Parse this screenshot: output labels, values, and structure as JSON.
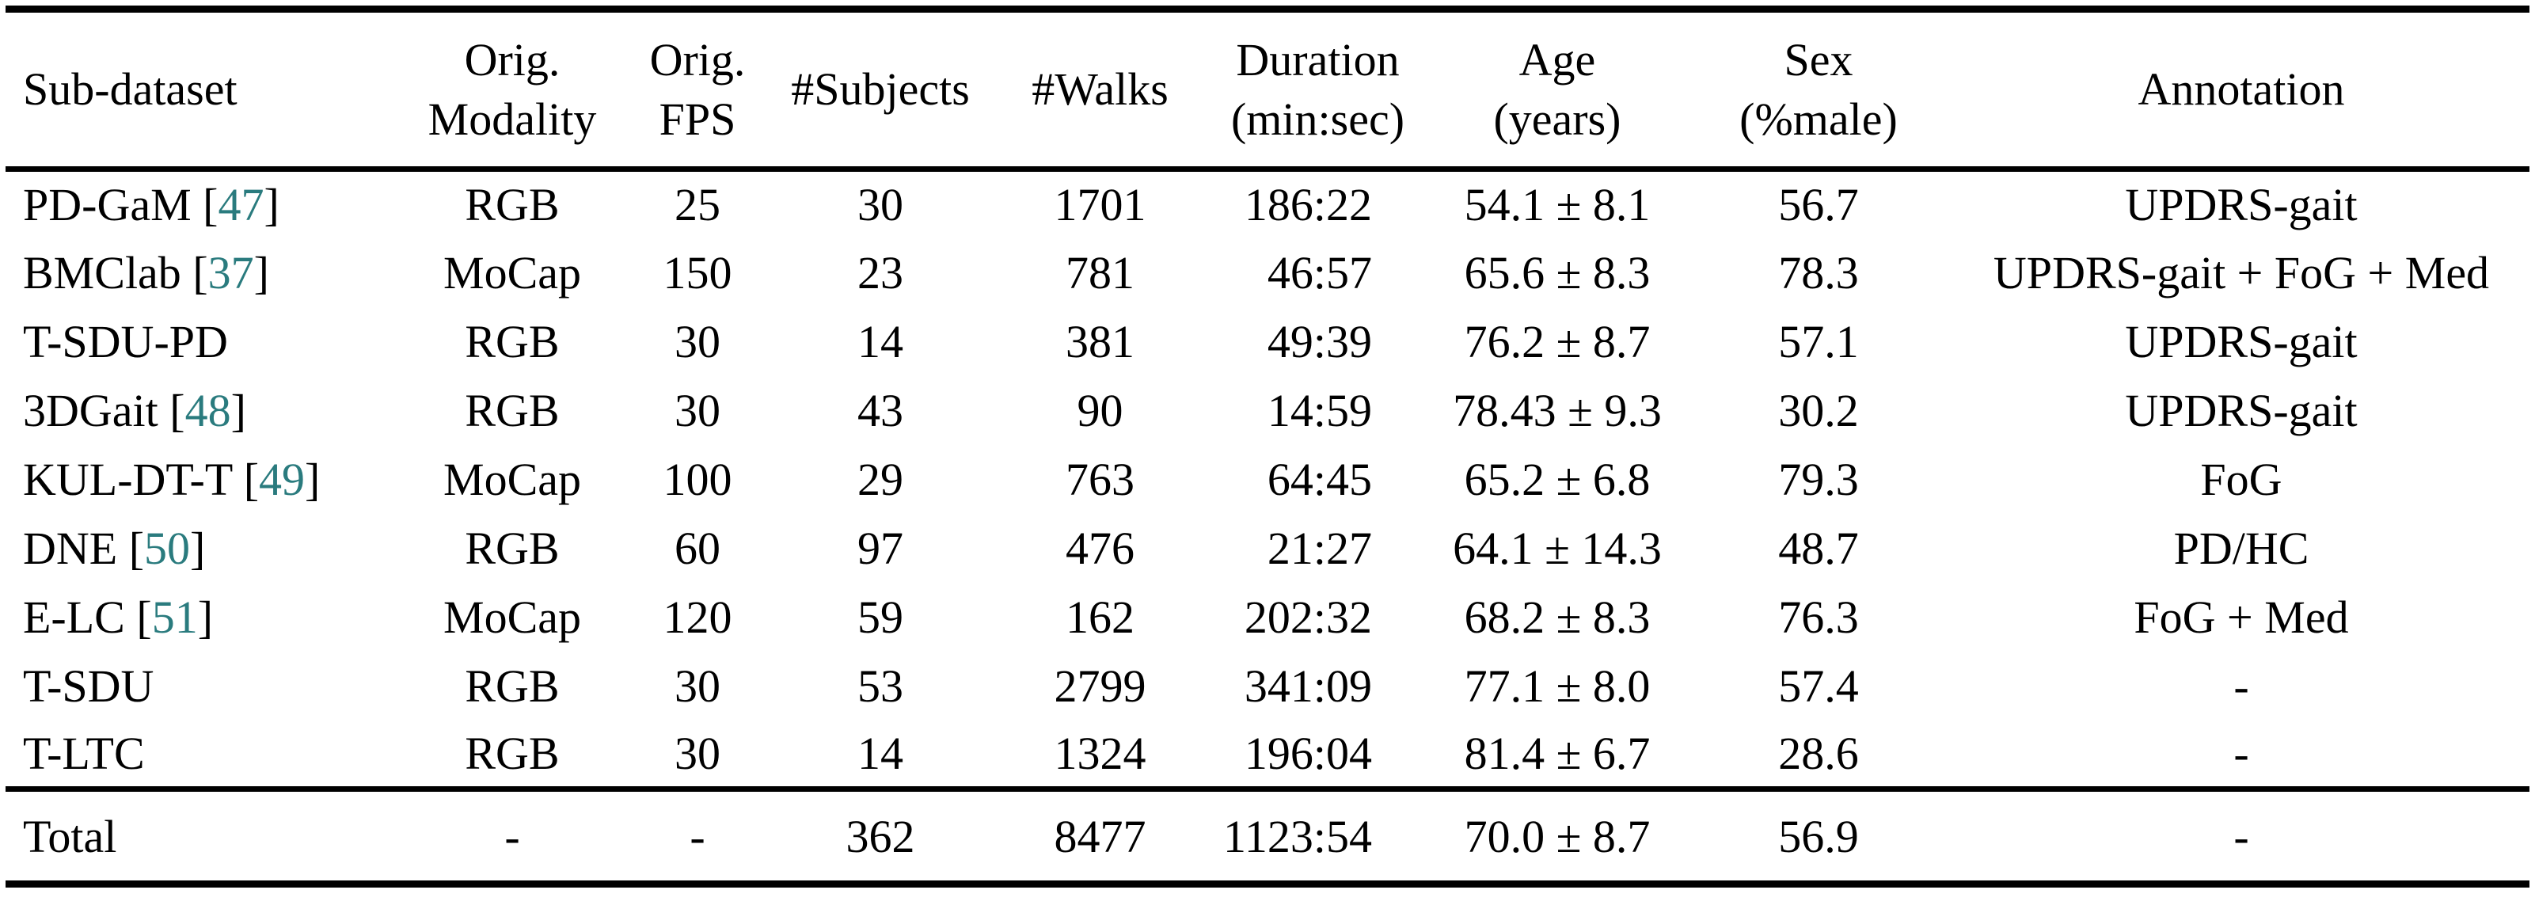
{
  "colors": {
    "text": "#000000",
    "background": "#ffffff",
    "rule": "#000000",
    "citation_link": "#2a7b7e"
  },
  "table": {
    "columns": [
      {
        "id": "subdataset",
        "label_lines": [
          "Sub-dataset"
        ]
      },
      {
        "id": "orig_modality",
        "label_lines": [
          "Orig.",
          "Modality"
        ]
      },
      {
        "id": "orig_fps",
        "label_lines": [
          "Orig.",
          "FPS"
        ]
      },
      {
        "id": "subjects",
        "label_lines": [
          "#Subjects"
        ]
      },
      {
        "id": "walks",
        "label_lines": [
          "#Walks"
        ]
      },
      {
        "id": "duration",
        "label_lines": [
          "Duration",
          "(min:sec)"
        ]
      },
      {
        "id": "age",
        "label_lines": [
          "Age",
          "(years)"
        ]
      },
      {
        "id": "sex",
        "label_lines": [
          "Sex",
          "(%male)"
        ]
      },
      {
        "id": "annotation",
        "label_lines": [
          "Annotation"
        ]
      }
    ],
    "rows": [
      {
        "name": "PD-GaM",
        "cite": "47",
        "modality": "RGB",
        "fps": "25",
        "subjects": "30",
        "walks": "1701",
        "duration": "186:22",
        "age": "54.1 ± 8.1",
        "sex": "56.7",
        "annotation": "UPDRS-gait"
      },
      {
        "name": "BMClab",
        "cite": "37",
        "modality": "MoCap",
        "fps": "150",
        "subjects": "23",
        "walks": "781",
        "duration": "46:57",
        "age": "65.6 ± 8.3",
        "sex": "78.3",
        "annotation": "UPDRS-gait + FoG + Med"
      },
      {
        "name": "T-SDU-PD",
        "cite": "",
        "modality": "RGB",
        "fps": "30",
        "subjects": "14",
        "walks": "381",
        "duration": "49:39",
        "age": "76.2 ± 8.7",
        "sex": "57.1",
        "annotation": "UPDRS-gait"
      },
      {
        "name": "3DGait",
        "cite": "48",
        "modality": "RGB",
        "fps": "30",
        "subjects": "43",
        "walks": "90",
        "duration": "14:59",
        "age": "78.43 ± 9.3",
        "sex": "30.2",
        "annotation": "UPDRS-gait"
      },
      {
        "name": "KUL-DT-T",
        "cite": "49",
        "modality": "MoCap",
        "fps": "100",
        "subjects": "29",
        "walks": "763",
        "duration": "64:45",
        "age": "65.2 ± 6.8",
        "sex": "79.3",
        "annotation": "FoG"
      },
      {
        "name": "DNE",
        "cite": "50",
        "modality": "RGB",
        "fps": "60",
        "subjects": "97",
        "walks": "476",
        "duration": "21:27",
        "age": "64.1 ± 14.3",
        "sex": "48.7",
        "annotation": "PD/HC"
      },
      {
        "name": "E-LC",
        "cite": "51",
        "modality": "MoCap",
        "fps": "120",
        "subjects": "59",
        "walks": "162",
        "duration": "202:32",
        "age": "68.2 ± 8.3",
        "sex": "76.3",
        "annotation": "FoG + Med"
      },
      {
        "name": "T-SDU",
        "cite": "",
        "modality": "RGB",
        "fps": "30",
        "subjects": "53",
        "walks": "2799",
        "duration": "341:09",
        "age": "77.1 ± 8.0",
        "sex": "57.4",
        "annotation": "-"
      },
      {
        "name": "T-LTC",
        "cite": "",
        "modality": "RGB",
        "fps": "30",
        "subjects": "14",
        "walks": "1324",
        "duration": "196:04",
        "age": "81.4 ± 6.7",
        "sex": "28.6",
        "annotation": "-"
      }
    ],
    "total_row": {
      "name": "Total",
      "cite": "",
      "modality": "-",
      "fps": "-",
      "subjects": "362",
      "walks": "8477",
      "duration": "1123:54",
      "age": "70.0 ± 8.7",
      "sex": "56.9",
      "annotation": "-"
    }
  }
}
